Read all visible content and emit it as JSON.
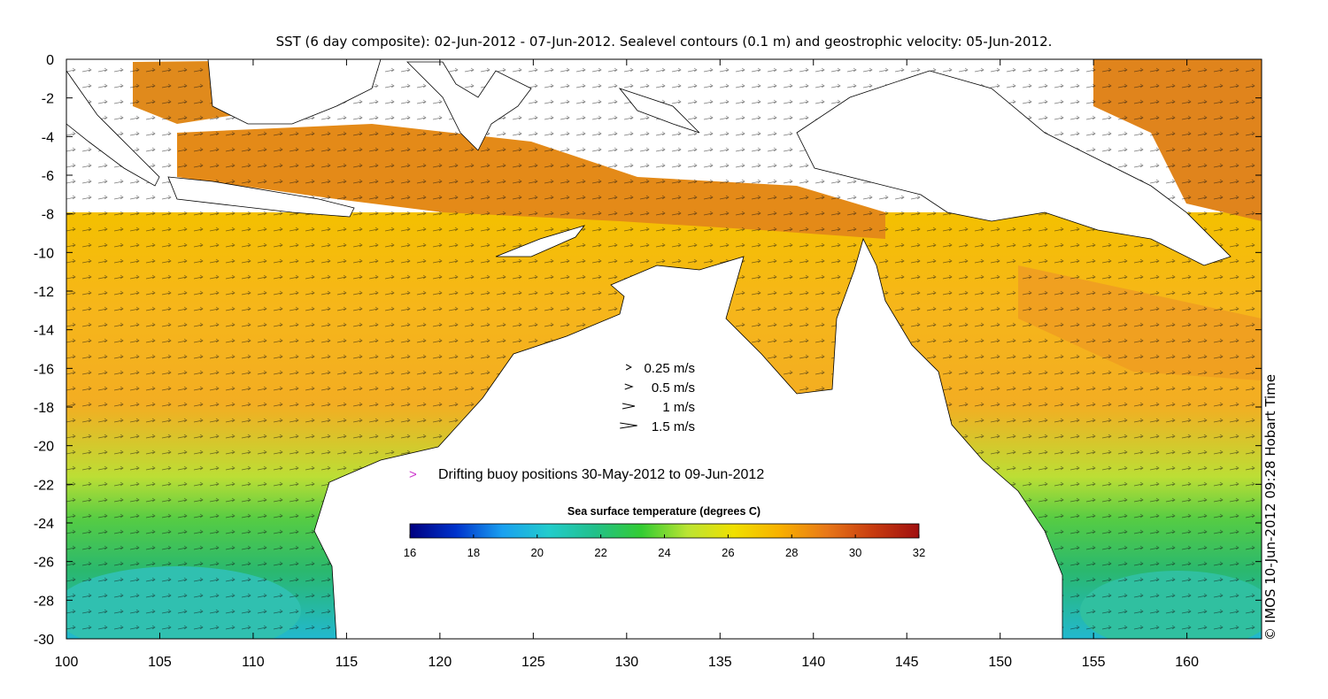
{
  "title": "SST (6 day composite): 02-Jun-2012 - 07-Jun-2012. Sealevel contours (0.1 m) and geostrophic velocity: 05-Jun-2012.",
  "credit": "© IMOS 10-Jun-2012 09:28 Hobart Time",
  "axes": {
    "x_ticks": [
      "100",
      "105",
      "110",
      "115",
      "120",
      "125",
      "130",
      "135",
      "140",
      "145",
      "150",
      "155",
      "160"
    ],
    "y_ticks": [
      "0",
      "-2",
      "-4",
      "-6",
      "-8",
      "-10",
      "-12",
      "-14",
      "-16",
      "-18",
      "-20",
      "-22",
      "-24",
      "-26",
      "-28",
      "-30"
    ],
    "lon_range": [
      100,
      164
    ],
    "lat_range": [
      -30,
      0
    ]
  },
  "velocity_legend": {
    "items": [
      {
        "label": "0.25 m/s",
        "speed": 0.25
      },
      {
        "label": "0.5 m/s",
        "speed": 0.5
      },
      {
        "label": "1 m/s",
        "speed": 1
      },
      {
        "label": "1.5 m/s",
        "speed": 1.5
      }
    ]
  },
  "buoy_legend": {
    "symbol": ">",
    "label": "Drifting buoy positions 30-May-2012 to 09-Jun-2012",
    "color": "#cc33cc"
  },
  "colorbar": {
    "title": "Sea surface temperature (degrees C)",
    "ticks": [
      "16",
      "18",
      "20",
      "22",
      "24",
      "26",
      "28",
      "30",
      "32"
    ],
    "min": 16,
    "max": 32,
    "colors": [
      "#000080",
      "#0033cc",
      "#1aa0f0",
      "#22cccc",
      "#22c08a",
      "#33cc33",
      "#bbe433",
      "#f0e000",
      "#f8b000",
      "#e87818",
      "#c83c10",
      "#a01010"
    ]
  }
}
